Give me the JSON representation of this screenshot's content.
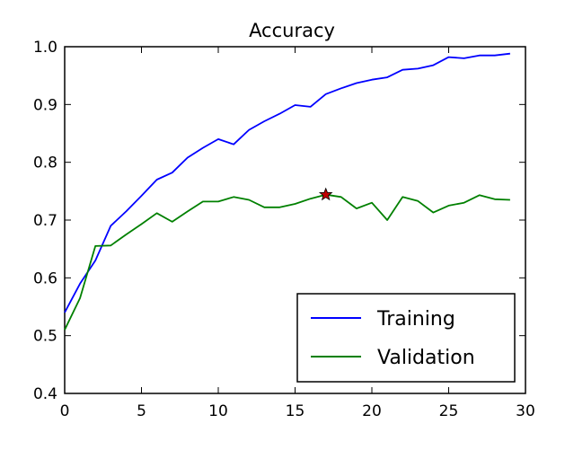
{
  "chart_data": {
    "type": "line",
    "title": "Accuracy",
    "xlabel": "",
    "ylabel": "",
    "xlim": [
      0,
      30
    ],
    "ylim": [
      0.4,
      1.0
    ],
    "xticks": [
      0,
      5,
      10,
      15,
      20,
      25,
      30
    ],
    "yticks": [
      0.4,
      0.5,
      0.6,
      0.7,
      0.8,
      0.9,
      1.0
    ],
    "xtick_labels": [
      "0",
      "5",
      "10",
      "15",
      "20",
      "25",
      "30"
    ],
    "ytick_labels": [
      "0.4",
      "0.5",
      "0.6",
      "0.7",
      "0.8",
      "0.9",
      "1.0"
    ],
    "grid": false,
    "legend_position": "lower-right",
    "x": [
      0,
      1,
      2,
      3,
      4,
      5,
      6,
      7,
      8,
      9,
      10,
      11,
      12,
      13,
      14,
      15,
      16,
      17,
      18,
      19,
      20,
      21,
      22,
      23,
      24,
      25,
      26,
      27,
      28,
      29
    ],
    "series": [
      {
        "name": "Training",
        "color": "#0000ff",
        "values": [
          0.54,
          0.59,
          0.63,
          0.69,
          0.715,
          0.742,
          0.77,
          0.782,
          0.808,
          0.825,
          0.84,
          0.831,
          0.856,
          0.871,
          0.884,
          0.899,
          0.896,
          0.918,
          0.928,
          0.937,
          0.943,
          0.947,
          0.96,
          0.962,
          0.968,
          0.982,
          0.98,
          0.985,
          0.985,
          0.988
        ]
      },
      {
        "name": "Validation",
        "color": "#008000",
        "values": [
          0.51,
          0.565,
          0.655,
          0.656,
          0.675,
          0.693,
          0.712,
          0.697,
          0.715,
          0.732,
          0.732,
          0.74,
          0.735,
          0.722,
          0.722,
          0.728,
          0.737,
          0.744,
          0.74,
          0.72,
          0.73,
          0.7,
          0.74,
          0.733,
          0.713,
          0.725,
          0.73,
          0.743,
          0.736,
          0.735
        ]
      }
    ],
    "marker": {
      "x": 17,
      "y": 0.744,
      "symbol": "star",
      "color": "#bf0000"
    }
  }
}
